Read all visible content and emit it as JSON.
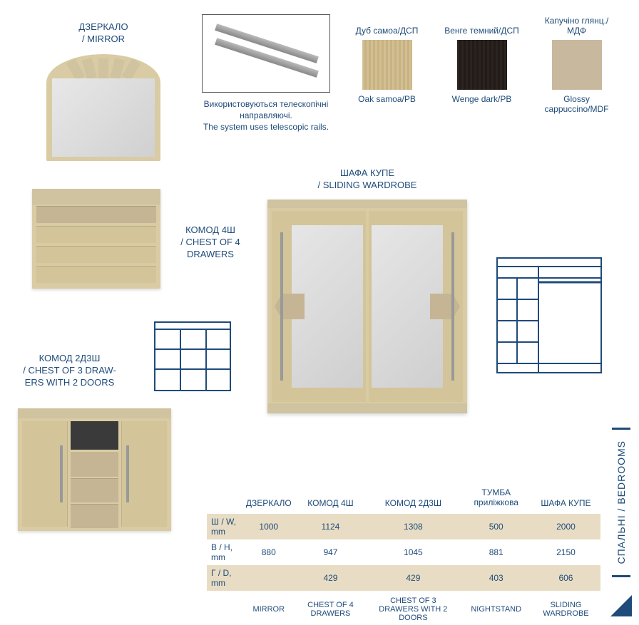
{
  "colors": {
    "text": "#1f4b7a",
    "oak": "#d2bf93",
    "wenge": "#2b2320",
    "cappuccino": "#c8b89d",
    "row_highlight": "#e8ddc4"
  },
  "mirror": {
    "label_uk": "ДЗЕРКАЛО",
    "label_en": "/ MIRROR"
  },
  "rails": {
    "text_uk": "Використовуються телескопічні направляючі.",
    "text_en": "The system uses telescopic rails."
  },
  "swatches": [
    {
      "top": "Дуб самоа/ДСП",
      "bottom": "Oak samoa/PB",
      "class": "sw-oak"
    },
    {
      "top": "Венге темний/ДСП",
      "bottom": "Wenge dark/PB",
      "class": "sw-wenge"
    },
    {
      "top": "Капучіно глянц./МДФ",
      "bottom": "Glossy cappuccino/MDF",
      "class": "sw-capp"
    }
  ],
  "chest4": {
    "label_uk": "КОМОД 4Ш",
    "label_en": "/ CHEST OF 4 DRAWERS"
  },
  "chest2d": {
    "label_uk": "КОМОД 2Д3Ш",
    "label_en": "/ CHEST OF 3 DRAW-\nERS WITH 2 DOORS"
  },
  "wardrobe": {
    "label_uk": "ШАФА КУПЕ",
    "label_en": "/ SLIDING WARDROBE"
  },
  "table": {
    "headers_uk": [
      "",
      "ДЗЕРКАЛО",
      "КОМОД 4Ш",
      "КОМОД 2Д3Ш",
      "ТУМБА приліжкова",
      "ШАФА КУПЕ"
    ],
    "rows": [
      {
        "label": "Ш / W, mm",
        "values": [
          "1000",
          "1124",
          "1308",
          "500",
          "2000"
        ]
      },
      {
        "label": "В / H, mm",
        "values": [
          "880",
          "947",
          "1045",
          "881",
          "2150"
        ]
      },
      {
        "label": "Г / D, mm",
        "values": [
          "",
          "429",
          "429",
          "403",
          "606"
        ]
      }
    ],
    "footers_en": [
      "",
      "MIRROR",
      "CHEST OF 4 DRAWERS",
      "CHEST OF 3 DRAWERS WITH 2 DOORS",
      "NIGHTSTAND",
      "SLIDING WARDROBE"
    ]
  },
  "side": {
    "text": "СПАЛЬНІ / BEDROOMS"
  }
}
